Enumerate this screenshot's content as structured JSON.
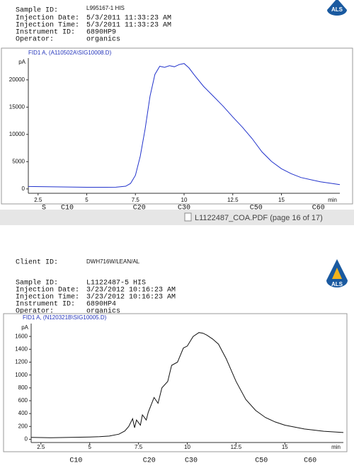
{
  "header1": {
    "logo": "ALS",
    "rows": [
      [
        "Sample ID:",
        "L995167-1 HIS"
      ],
      [
        "Injection Date:",
        "5/3/2011 11:33:23 AM"
      ],
      [
        "Injection Time:",
        "5/3/2011 11:33:23 AM"
      ],
      [
        "Instrument ID:",
        "6890HP9"
      ],
      [
        "Operator:",
        "organics"
      ]
    ]
  },
  "window": {
    "title": "L1122487_COA.PDF (page 16 of 17)"
  },
  "header2": {
    "logo": "ALS",
    "client": [
      "Client ID:",
      "DWH716W/LEAN/AL"
    ],
    "rows": [
      [
        "Sample ID:",
        "L1122487-5 HIS"
      ],
      [
        "Injection Date:",
        "3/23/2012 10:16:23 AM"
      ],
      [
        "Injection Time:",
        "3/23/2012 10:16:23 AM"
      ],
      [
        "Instrument ID:",
        "6890HP4"
      ],
      [
        "Operator:",
        "organics"
      ]
    ]
  },
  "chart_data": [
    {
      "type": "line",
      "title": "FID1 A, (A110502A\\SIG10008.D)",
      "y_label": "pA",
      "x_label": "min",
      "xlim": [
        2,
        18
      ],
      "xticks": [
        2.5,
        5,
        7.5,
        10,
        12.5,
        15
      ],
      "ylim": [
        -800,
        24000
      ],
      "yticks": [
        0,
        5000,
        10000,
        15000,
        20000
      ],
      "series": [
        {
          "color": "#2233cc",
          "x": [
            2,
            3,
            4,
            5,
            6,
            6.5,
            7,
            7.25,
            7.5,
            7.75,
            8,
            8.25,
            8.5,
            8.75,
            9,
            9.25,
            9.5,
            9.75,
            10,
            10.25,
            10.5,
            11,
            11.5,
            12,
            12.5,
            13,
            13.5,
            14,
            14.5,
            15,
            15.5,
            16,
            17,
            18
          ],
          "values": [
            450,
            400,
            350,
            300,
            300,
            320,
            500,
            1000,
            2500,
            6000,
            11000,
            17000,
            21000,
            22500,
            22300,
            22600,
            22400,
            22800,
            23000,
            22200,
            21000,
            18800,
            17000,
            15200,
            13200,
            11300,
            9200,
            6800,
            5000,
            3700,
            2800,
            2100,
            1300,
            800
          ]
        }
      ],
      "annotations": [
        {
          "text": "S",
          "x": 2.8
        },
        {
          "text": "C10",
          "x": 4.0
        },
        {
          "text": "C20",
          "x": 7.7
        },
        {
          "text": "C30",
          "x": 10.0
        },
        {
          "text": "C50",
          "x": 13.7
        },
        {
          "text": "C60",
          "x": 16.9
        }
      ]
    },
    {
      "type": "line",
      "title": "FID1 A, (N120321B\\SIG10005.D)",
      "y_label": "pA",
      "x_label": "min",
      "xlim": [
        2,
        18
      ],
      "xticks": [
        2.5,
        5,
        7.5,
        10,
        12.5,
        15
      ],
      "ylim": [
        -50,
        1800
      ],
      "yticks": [
        0,
        200,
        400,
        600,
        800,
        1000,
        1200,
        1400,
        1600
      ],
      "series": [
        {
          "color": "#111111",
          "x": [
            2,
            3,
            4,
            5,
            5.5,
            6,
            6.5,
            6.8,
            7,
            7.2,
            7.3,
            7.4,
            7.6,
            7.7,
            7.9,
            8,
            8.3,
            8.5,
            8.7,
            9,
            9.2,
            9.5,
            9.8,
            10,
            10.3,
            10.6,
            10.8,
            11,
            11.3,
            11.6,
            12,
            12.5,
            13,
            13.5,
            14,
            14.5,
            15,
            16,
            17,
            18
          ],
          "values": [
            30,
            25,
            30,
            35,
            40,
            50,
            80,
            130,
            200,
            320,
            180,
            300,
            220,
            380,
            300,
            420,
            650,
            560,
            800,
            900,
            1150,
            1200,
            1420,
            1450,
            1600,
            1660,
            1650,
            1620,
            1560,
            1480,
            1250,
            900,
            620,
            450,
            340,
            270,
            220,
            160,
            125,
            105
          ]
        }
      ],
      "annotations": [
        {
          "text": "C10",
          "x": 4.3
        },
        {
          "text": "C20",
          "x": 8.05
        },
        {
          "text": "C30",
          "x": 10.2
        },
        {
          "text": "C50",
          "x": 13.8
        },
        {
          "text": "C60",
          "x": 16.3
        }
      ]
    }
  ]
}
